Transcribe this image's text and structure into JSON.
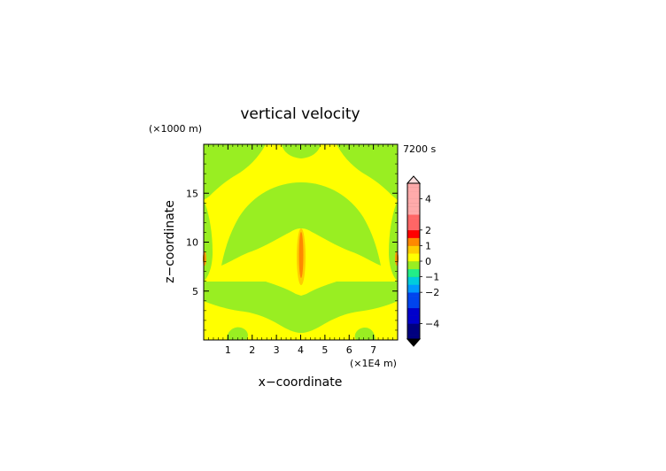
{
  "chart_data": {
    "type": "heatmap",
    "title": "vertical velocity",
    "time_label": "7200 s",
    "xlabel": "x−coordinate",
    "ylabel": "z−coordinate",
    "x_unit_label": "(×1E4 m)",
    "y_unit_label": "(×1000 m)",
    "xlim": [
      0,
      8
    ],
    "ylim": [
      0,
      20
    ],
    "x_ticks": [
      "1",
      "2",
      "3",
      "4",
      "5",
      "6",
      "7"
    ],
    "y_ticks": [
      "5",
      "10",
      "15"
    ],
    "colorbar": {
      "tick_labels": [
        "4",
        "2",
        "1",
        "0",
        "−1",
        "−2",
        "−4"
      ],
      "tick_values": [
        4,
        2,
        1,
        0,
        -1,
        -2,
        -4
      ],
      "range": [
        -5,
        5
      ],
      "extend": "both"
    },
    "colors": {
      "background_positive": "#ffff00",
      "background_slightly_negative": "#99ee22",
      "updraft_core": "#ff8800",
      "dark_blue_end": "#000080",
      "pink_end": "#ffaaaa"
    },
    "regions": [
      {
        "level": "0",
        "description": "yellow background, w slightly positive"
      },
      {
        "level": "-0.2",
        "description": "green regions, w slightly negative"
      },
      {
        "level": "1.5",
        "description": "central updraft core near x=4"
      }
    ]
  }
}
